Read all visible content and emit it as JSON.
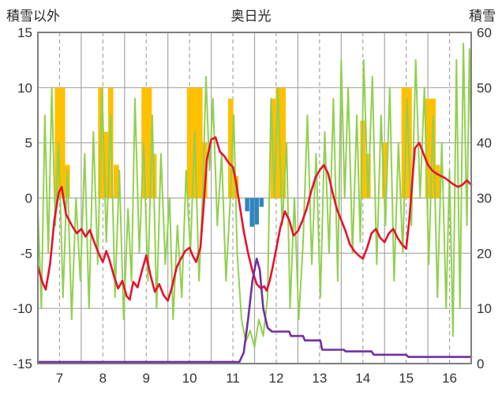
{
  "header": {
    "left": "積雪以外",
    "center": "奥日光",
    "right": "積雪"
  },
  "chart_data": {
    "type": "line",
    "title": "奥日光",
    "left_axis": {
      "title": "積雪以外",
      "min": -15,
      "max": 15,
      "ticks": [
        -15,
        -10,
        -5,
        0,
        5,
        10,
        15
      ]
    },
    "right_axis": {
      "title": "積雪",
      "min": 0,
      "max": 60,
      "ticks": [
        0,
        10,
        20,
        30,
        40,
        50,
        60
      ]
    },
    "x_axis": {
      "min": 6.5,
      "max": 16.5,
      "tick_labels": [
        7,
        8,
        9,
        10,
        11,
        12,
        13,
        14,
        15,
        16
      ],
      "dashed_gridlines": [
        7,
        8,
        9,
        10,
        11,
        12,
        13,
        14,
        15,
        16
      ],
      "solid_gridlines": [
        7.5,
        8.5,
        9.5,
        10.5,
        11.5,
        12.5,
        13.5,
        14.5,
        15.5
      ]
    },
    "colors": {
      "grid": "#a6a6a6",
      "border": "#7f7f7f",
      "text": "#333333",
      "background": "#ffffff"
    },
    "series": [
      {
        "name": "orange-bars",
        "type": "bar",
        "axis": "left",
        "color": "#ffc000",
        "bar_width": 0.12,
        "points": [
          [
            6.95,
            10
          ],
          [
            7.07,
            10
          ],
          [
            7.18,
            3
          ],
          [
            7.95,
            10
          ],
          [
            8.07,
            6
          ],
          [
            8.18,
            10
          ],
          [
            8.31,
            3
          ],
          [
            8.95,
            10
          ],
          [
            9.07,
            10
          ],
          [
            9.18,
            4
          ],
          [
            10.0,
            10
          ],
          [
            10.12,
            10
          ],
          [
            10.24,
            10
          ],
          [
            10.35,
            5
          ],
          [
            10.95,
            9
          ],
          [
            11.07,
            2
          ],
          [
            11.93,
            9
          ],
          [
            12.05,
            10
          ],
          [
            12.16,
            10
          ],
          [
            14.0,
            7
          ],
          [
            14.12,
            4
          ],
          [
            14.5,
            5
          ],
          [
            14.95,
            10
          ],
          [
            15.07,
            10
          ],
          [
            15.5,
            9
          ],
          [
            15.62,
            9
          ],
          [
            15.72,
            3
          ]
        ]
      },
      {
        "name": "blue-bars",
        "type": "bar",
        "axis": "left",
        "color": "#2e86c1",
        "bar_width": 0.1,
        "points": [
          [
            11.33,
            -1.2
          ],
          [
            11.44,
            -2.6
          ],
          [
            11.55,
            -2.4
          ],
          [
            11.66,
            -0.8
          ]
        ]
      },
      {
        "name": "green-line",
        "type": "line",
        "axis": "right",
        "color": "#92d050",
        "width": 2,
        "points": [
          [
            6.5,
            28
          ],
          [
            6.58,
            10
          ],
          [
            6.66,
            45
          ],
          [
            6.74,
            20
          ],
          [
            6.82,
            50
          ],
          [
            6.9,
            25
          ],
          [
            6.98,
            40
          ],
          [
            7.08,
            12
          ],
          [
            7.18,
            35
          ],
          [
            7.28,
            8
          ],
          [
            7.38,
            30
          ],
          [
            7.48,
            15
          ],
          [
            7.58,
            38
          ],
          [
            7.68,
            10
          ],
          [
            7.78,
            42
          ],
          [
            7.88,
            18
          ],
          [
            7.98,
            50
          ],
          [
            8.08,
            22
          ],
          [
            8.18,
            45
          ],
          [
            8.28,
            12
          ],
          [
            8.38,
            35
          ],
          [
            8.48,
            8
          ],
          [
            8.58,
            28
          ],
          [
            8.66,
            15
          ],
          [
            8.74,
            48
          ],
          [
            8.84,
            20
          ],
          [
            8.94,
            40
          ],
          [
            9.04,
            15
          ],
          [
            9.14,
            45
          ],
          [
            9.24,
            10
          ],
          [
            9.34,
            38
          ],
          [
            9.44,
            18
          ],
          [
            9.54,
            30
          ],
          [
            9.62,
            8
          ],
          [
            9.72,
            25
          ],
          [
            9.82,
            12
          ],
          [
            9.92,
            35
          ],
          [
            10.02,
            20
          ],
          [
            10.12,
            42
          ],
          [
            10.22,
            15
          ],
          [
            10.3,
            30
          ],
          [
            10.38,
            52
          ],
          [
            10.46,
            35
          ],
          [
            10.54,
            48
          ],
          [
            10.64,
            25
          ],
          [
            10.74,
            38
          ],
          [
            10.84,
            15
          ],
          [
            10.94,
            30
          ],
          [
            11.02,
            45
          ],
          [
            11.1,
            20
          ],
          [
            11.2,
            8
          ],
          [
            11.3,
            4
          ],
          [
            11.4,
            6
          ],
          [
            11.5,
            3
          ],
          [
            11.6,
            8
          ],
          [
            11.7,
            5
          ],
          [
            11.8,
            12
          ],
          [
            11.88,
            48
          ],
          [
            11.96,
            30
          ],
          [
            12.04,
            50
          ],
          [
            12.14,
            25
          ],
          [
            12.24,
            40
          ],
          [
            12.32,
            10
          ],
          [
            12.42,
            30
          ],
          [
            12.52,
            8
          ],
          [
            12.62,
            22
          ],
          [
            12.72,
            45
          ],
          [
            12.82,
            18
          ],
          [
            12.92,
            38
          ],
          [
            13.02,
            12
          ],
          [
            13.12,
            42
          ],
          [
            13.22,
            20
          ],
          [
            13.32,
            48
          ],
          [
            13.42,
            15
          ],
          [
            13.5,
            55
          ],
          [
            13.58,
            30
          ],
          [
            13.66,
            50
          ],
          [
            13.76,
            20
          ],
          [
            13.86,
            45
          ],
          [
            13.94,
            22
          ],
          [
            14.02,
            55
          ],
          [
            14.12,
            30
          ],
          [
            14.22,
            52
          ],
          [
            14.32,
            18
          ],
          [
            14.42,
            45
          ],
          [
            14.52,
            25
          ],
          [
            14.62,
            50
          ],
          [
            14.72,
            15
          ],
          [
            14.82,
            40
          ],
          [
            14.92,
            20
          ],
          [
            15.02,
            48
          ],
          [
            15.12,
            25
          ],
          [
            15.22,
            55
          ],
          [
            15.32,
            30
          ],
          [
            15.42,
            50
          ],
          [
            15.52,
            18
          ],
          [
            15.62,
            45
          ],
          [
            15.72,
            12
          ],
          [
            15.82,
            40
          ],
          [
            15.92,
            10
          ],
          [
            16.0,
            35
          ],
          [
            16.08,
            5
          ],
          [
            16.16,
            55
          ],
          [
            16.24,
            10
          ],
          [
            16.32,
            58
          ],
          [
            16.4,
            25
          ],
          [
            16.46,
            57
          ],
          [
            16.5,
            40
          ]
        ]
      },
      {
        "name": "red-line",
        "type": "line",
        "axis": "left",
        "color": "#e8112d",
        "width": 2.6,
        "points": [
          [
            6.5,
            -6.2
          ],
          [
            6.6,
            -7.6
          ],
          [
            6.68,
            -8.3
          ],
          [
            6.78,
            -6.0
          ],
          [
            6.88,
            -2.0
          ],
          [
            6.98,
            0.5
          ],
          [
            7.05,
            1.0
          ],
          [
            7.15,
            -1.5
          ],
          [
            7.3,
            -2.6
          ],
          [
            7.4,
            -3.2
          ],
          [
            7.5,
            -2.8
          ],
          [
            7.6,
            -3.5
          ],
          [
            7.7,
            -2.9
          ],
          [
            7.8,
            -4.0
          ],
          [
            7.9,
            -5.0
          ],
          [
            8.0,
            -5.8
          ],
          [
            8.08,
            -4.8
          ],
          [
            8.15,
            -5.6
          ],
          [
            8.25,
            -7.0
          ],
          [
            8.35,
            -8.2
          ],
          [
            8.45,
            -7.5
          ],
          [
            8.55,
            -8.9
          ],
          [
            8.62,
            -9.2
          ],
          [
            8.7,
            -7.6
          ],
          [
            8.8,
            -8.1
          ],
          [
            8.9,
            -6.6
          ],
          [
            9.0,
            -5.2
          ],
          [
            9.1,
            -7.0
          ],
          [
            9.2,
            -8.5
          ],
          [
            9.3,
            -7.8
          ],
          [
            9.4,
            -8.8
          ],
          [
            9.5,
            -9.3
          ],
          [
            9.6,
            -8.0
          ],
          [
            9.7,
            -6.3
          ],
          [
            9.8,
            -5.5
          ],
          [
            9.9,
            -4.8
          ],
          [
            10.0,
            -4.5
          ],
          [
            10.07,
            -5.2
          ],
          [
            10.15,
            -5.8
          ],
          [
            10.25,
            -4.5
          ],
          [
            10.32,
            -1.0
          ],
          [
            10.4,
            3.5
          ],
          [
            10.5,
            5.3
          ],
          [
            10.6,
            5.5
          ],
          [
            10.7,
            4.2
          ],
          [
            10.8,
            3.8
          ],
          [
            10.9,
            3.2
          ],
          [
            11.0,
            2.8
          ],
          [
            11.07,
            1.5
          ],
          [
            11.15,
            -0.5
          ],
          [
            11.25,
            -3.0
          ],
          [
            11.35,
            -5.0
          ],
          [
            11.45,
            -6.6
          ],
          [
            11.55,
            -7.8
          ],
          [
            11.65,
            -8.2
          ],
          [
            11.72,
            -8.0
          ],
          [
            11.78,
            -8.4
          ],
          [
            11.85,
            -7.5
          ],
          [
            11.92,
            -6.2
          ],
          [
            12.0,
            -4.6
          ],
          [
            12.1,
            -2.6
          ],
          [
            12.2,
            -1.2
          ],
          [
            12.3,
            -2.0
          ],
          [
            12.4,
            -3.4
          ],
          [
            12.5,
            -3.0
          ],
          [
            12.6,
            -2.1
          ],
          [
            12.7,
            -1.0
          ],
          [
            12.8,
            0.5
          ],
          [
            12.9,
            1.8
          ],
          [
            13.0,
            2.5
          ],
          [
            13.1,
            3.0
          ],
          [
            13.2,
            2.2
          ],
          [
            13.3,
            0.5
          ],
          [
            13.4,
            -1.0
          ],
          [
            13.5,
            -2.0
          ],
          [
            13.6,
            -3.0
          ],
          [
            13.7,
            -4.2
          ],
          [
            13.8,
            -4.8
          ],
          [
            13.9,
            -5.2
          ],
          [
            14.0,
            -5.5
          ],
          [
            14.1,
            -4.5
          ],
          [
            14.2,
            -3.2
          ],
          [
            14.3,
            -2.8
          ],
          [
            14.4,
            -3.6
          ],
          [
            14.5,
            -4.0
          ],
          [
            14.6,
            -3.2
          ],
          [
            14.7,
            -2.8
          ],
          [
            14.8,
            -3.6
          ],
          [
            14.9,
            -4.2
          ],
          [
            15.0,
            -4.6
          ],
          [
            15.07,
            -2.0
          ],
          [
            15.13,
            1.0
          ],
          [
            15.2,
            4.5
          ],
          [
            15.3,
            5.0
          ],
          [
            15.4,
            4.0
          ],
          [
            15.5,
            3.0
          ],
          [
            15.6,
            2.5
          ],
          [
            15.7,
            2.2
          ],
          [
            15.8,
            2.0
          ],
          [
            15.9,
            1.8
          ],
          [
            16.0,
            1.5
          ],
          [
            16.1,
            1.2
          ],
          [
            16.2,
            1.0
          ],
          [
            16.3,
            1.2
          ],
          [
            16.4,
            1.6
          ],
          [
            16.5,
            1.2
          ]
        ]
      },
      {
        "name": "purple-line",
        "type": "line",
        "axis": "right",
        "color": "#7030a0",
        "width": 2.6,
        "points": [
          [
            6.5,
            0.3
          ],
          [
            11.15,
            0.3
          ],
          [
            11.25,
            2
          ],
          [
            11.35,
            8
          ],
          [
            11.45,
            15
          ],
          [
            11.55,
            19
          ],
          [
            11.62,
            17
          ],
          [
            11.7,
            10
          ],
          [
            11.8,
            6.5
          ],
          [
            11.9,
            5.8
          ],
          [
            12.3,
            5.8
          ],
          [
            12.34,
            5
          ],
          [
            12.62,
            5
          ],
          [
            12.66,
            4.2
          ],
          [
            13.02,
            4.2
          ],
          [
            13.06,
            2.5
          ],
          [
            13.56,
            2.5
          ],
          [
            13.6,
            2.2
          ],
          [
            14.2,
            2.2
          ],
          [
            14.25,
            1.6
          ],
          [
            15.0,
            1.6
          ],
          [
            15.05,
            1.2
          ],
          [
            16.5,
            1.2
          ]
        ]
      }
    ]
  }
}
